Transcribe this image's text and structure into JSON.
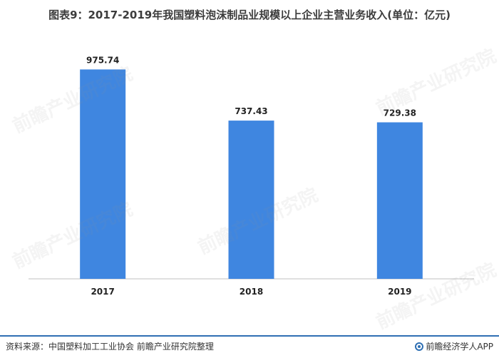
{
  "title": "图表9：2017-2019年我国塑料泡沫制品业规模以上企业主营业务收入(单位：亿元)",
  "source": "资料来源：中国塑料加工工业协会 前瞻产业研究院整理",
  "brand": "前瞻经济学人APP",
  "watermark": "前瞻产业研究院",
  "colors": {
    "bar": "#3f86e0",
    "axis": "#bfbfbf",
    "footer_rule": "#2f6fb3"
  },
  "chart_data": {
    "type": "bar",
    "title": "图表9：2017-2019年我国塑料泡沫制品业规模以上企业主营业务收入(单位：亿元)",
    "categories": [
      "2017",
      "2018",
      "2019"
    ],
    "values": [
      975.74,
      737.43,
      729.38
    ],
    "value_labels": [
      "975.74",
      "737.43",
      "729.38"
    ],
    "ylim": [
      0,
      1100
    ],
    "grid": false,
    "legend": "none"
  }
}
